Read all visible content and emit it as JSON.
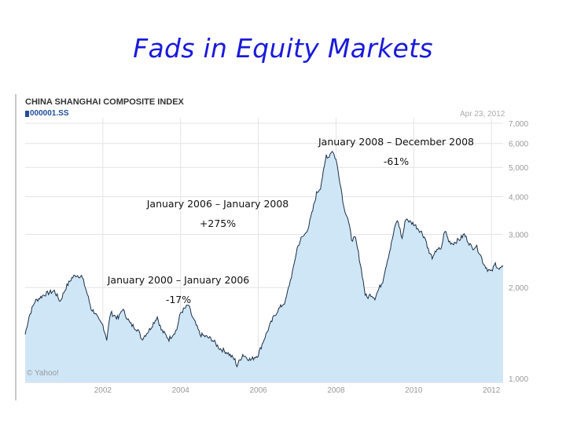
{
  "slide": {
    "title": "Fads in Equity Markets"
  },
  "chart_data": {
    "type": "area",
    "title": "CHINA SHANGHAI COMPOSITE INDEX",
    "ticker": "000001.SS",
    "date_label": "Apr 23, 2012",
    "source": "© Yahoo!",
    "xlabel": "",
    "ylabel": "",
    "x_tick_labels": [
      "2002",
      "2004",
      "2006",
      "2008",
      "2010",
      "2012"
    ],
    "y_tick_labels": [
      "7,000",
      "6,000",
      "5,000",
      "4,000",
      "3,000",
      "2,000",
      "1,000"
    ],
    "y_ticks": [
      7000,
      6000,
      5000,
      4000,
      3000,
      2000,
      1000
    ],
    "y_scale": "log",
    "ylim": [
      1000,
      7000
    ],
    "xlim": [
      2000.0,
      2012.3
    ],
    "grid": true,
    "series": [
      {
        "x": [
          2000.0,
          2000.1,
          2000.25,
          2000.5,
          2000.75,
          2000.9,
          2001.05,
          2001.2,
          2001.3,
          2001.45,
          2001.5,
          2001.7,
          2001.8,
          2001.9,
          2002.0,
          2002.1,
          2002.2,
          2002.4,
          2002.5,
          2002.7,
          2002.9,
          2003.0,
          2003.2,
          2003.4,
          2003.5,
          2003.7,
          2003.9,
          2004.0,
          2004.2,
          2004.3,
          2004.5,
          2004.8,
          2005.0,
          2005.2,
          2005.4,
          2005.45,
          2005.6,
          2005.8,
          2006.0,
          2006.2,
          2006.4,
          2006.5,
          2006.7,
          2006.9,
          2007.0,
          2007.1,
          2007.2,
          2007.3,
          2007.4,
          2007.5,
          2007.6,
          2007.7,
          2007.75,
          2007.8,
          2007.9,
          2008.0,
          2008.1,
          2008.2,
          2008.3,
          2008.4,
          2008.5,
          2008.6,
          2008.7,
          2008.75,
          2008.8,
          2008.9,
          2009.0,
          2009.2,
          2009.4,
          2009.55,
          2009.6,
          2009.7,
          2009.8,
          2009.9,
          2010.0,
          2010.1,
          2010.2,
          2010.3,
          2010.4,
          2010.5,
          2010.6,
          2010.7,
          2010.8,
          2010.9,
          2011.0,
          2011.2,
          2011.3,
          2011.4,
          2011.5,
          2011.6,
          2011.7,
          2011.8,
          2011.9,
          2012.0,
          2012.1,
          2012.2,
          2012.3
        ],
        "y": [
          1400,
          1600,
          1800,
          1900,
          1950,
          1800,
          2000,
          2150,
          2200,
          2180,
          2100,
          1700,
          1650,
          1550,
          1500,
          1350,
          1650,
          1580,
          1700,
          1520,
          1450,
          1350,
          1450,
          1600,
          1450,
          1350,
          1450,
          1650,
          1750,
          1600,
          1400,
          1350,
          1260,
          1220,
          1150,
          1100,
          1200,
          1150,
          1200,
          1400,
          1600,
          1680,
          1800,
          2300,
          2700,
          2900,
          3000,
          3200,
          3600,
          4100,
          4300,
          5000,
          5500,
          5400,
          5700,
          5300,
          4500,
          3700,
          3400,
          2900,
          2900,
          2500,
          2100,
          1900,
          1850,
          1900,
          1850,
          2100,
          2700,
          3300,
          3300,
          2900,
          3400,
          3300,
          3250,
          3150,
          3050,
          2900,
          2600,
          2500,
          2700,
          2650,
          3100,
          2850,
          2800,
          2900,
          3000,
          2850,
          2700,
          2750,
          2600,
          2400,
          2300,
          2250,
          2400,
          2300,
          2350
        ]
      }
    ],
    "annotations": [
      {
        "line1": "January 2008 – December 2008",
        "line2": "-61%"
      },
      {
        "line1": "January 2006 – January 2008",
        "line2": "+275%"
      },
      {
        "line1": "January 2000 – January 2006",
        "line2": "-17%"
      }
    ],
    "colors": {
      "area_fill": "#cfe6f7",
      "line": "#1c2f45",
      "grid": "#e4e4e4",
      "axis_text": "#999999"
    }
  }
}
